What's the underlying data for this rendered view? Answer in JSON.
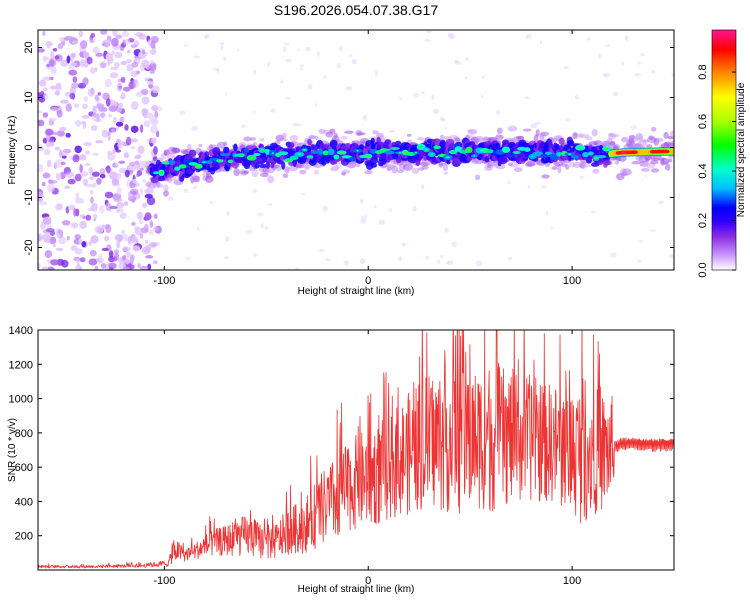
{
  "figure": {
    "title": "S196.2026.054.07.38.G17"
  },
  "chart_data": [
    {
      "type": "heatmap",
      "title": "S196.2026.054.07.38.G17",
      "xlabel": "Height of straight line (km)",
      "ylabel": "Frequency (Hz)",
      "xlim": [
        -162,
        150
      ],
      "ylim": [
        -24.5,
        23.5
      ],
      "xticks": [
        -100,
        0,
        100
      ],
      "xtick_labels": [
        "-100",
        "0",
        "100"
      ],
      "yticks": [
        -20,
        -10,
        0,
        10,
        20
      ],
      "ytick_labels": [
        "-20",
        "-10",
        "0",
        "10",
        "20"
      ],
      "colorbar": {
        "label": "Normalized spectral amplitude",
        "range": [
          0,
          0.97
        ],
        "ticks": [
          0,
          0.2,
          0.4,
          0.6,
          0.8
        ],
        "tick_labels": [
          "0.0",
          "0.2",
          "0.4",
          "0.6",
          "0.8"
        ],
        "colormap": [
          "#ffffff",
          "#cc99ff",
          "#8a2be2",
          "#3300ff",
          "#0000ff",
          "#00bfff",
          "#00ffcc",
          "#00ff00",
          "#aaff00",
          "#ffff00",
          "#ff8800",
          "#ff0000",
          "#ff1493"
        ]
      },
      "noise_region_x": [
        -162,
        -103
      ],
      "track": [
        {
          "x": -105,
          "freq": -5.0,
          "amp": 0.35
        },
        {
          "x": -90,
          "freq": -3.5,
          "amp": 0.45
        },
        {
          "x": -75,
          "freq": -2.5,
          "amp": 0.5
        },
        {
          "x": -60,
          "freq": -2.0,
          "amp": 0.5
        },
        {
          "x": -40,
          "freq": -1.5,
          "amp": 0.5
        },
        {
          "x": -20,
          "freq": -1.2,
          "amp": 0.5
        },
        {
          "x": 0,
          "freq": -1.0,
          "amp": 0.5
        },
        {
          "x": 20,
          "freq": -1.0,
          "amp": 0.5
        },
        {
          "x": 40,
          "freq": -1.0,
          "amp": 0.5
        },
        {
          "x": 60,
          "freq": -0.8,
          "amp": 0.5
        },
        {
          "x": 80,
          "freq": -0.8,
          "amp": 0.5
        },
        {
          "x": 100,
          "freq": -0.8,
          "amp": 0.45
        },
        {
          "x": 115,
          "freq": -1.5,
          "amp": 0.4
        },
        {
          "x": 120,
          "freq": -1.2,
          "amp": 0.75
        },
        {
          "x": 125,
          "freq": -1.0,
          "amp": 0.97
        },
        {
          "x": 135,
          "freq": -0.9,
          "amp": 0.8
        },
        {
          "x": 145,
          "freq": -0.8,
          "amp": 0.95
        },
        {
          "x": 150,
          "freq": -0.8,
          "amp": 0.7
        }
      ]
    },
    {
      "type": "line",
      "xlabel": "Height of straight line (km)",
      "ylabel": "SNR (10 * v/v)",
      "xlim": [
        -162,
        150
      ],
      "ylim": [
        0,
        1400
      ],
      "xticks": [
        -100,
        0,
        100
      ],
      "xtick_labels": [
        "-100",
        "0",
        "100"
      ],
      "yticks": [
        200,
        400,
        600,
        800,
        1000,
        1200,
        1400
      ],
      "ytick_labels": [
        "200",
        "400",
        "600",
        "800",
        "1000",
        "1200",
        "1400"
      ],
      "series": [
        {
          "name": "SNR",
          "color": "#ee3333",
          "envelope_x": [
            -162,
            -140,
            -110,
            -98,
            -95,
            -90,
            -85,
            -80,
            -75,
            -70,
            -65,
            -60,
            -55,
            -50,
            -45,
            -40,
            -35,
            -30,
            -25,
            -20,
            -15,
            -10,
            -5,
            0,
            5,
            10,
            15,
            20,
            25,
            30,
            35,
            40,
            45,
            50,
            55,
            60,
            65,
            70,
            75,
            80,
            85,
            90,
            95,
            100,
            105,
            110,
            115,
            120,
            121,
            125,
            130,
            140,
            150
          ],
          "envelope_mid": [
            20,
            20,
            25,
            40,
            120,
            90,
            110,
            140,
            160,
            170,
            190,
            200,
            180,
            160,
            170,
            220,
            240,
            270,
            330,
            380,
            420,
            480,
            520,
            540,
            560,
            600,
            640,
            680,
            720,
            750,
            760,
            780,
            760,
            760,
            770,
            780,
            770,
            780,
            760,
            770,
            750,
            740,
            720,
            700,
            680,
            700,
            690,
            700,
            720,
            740,
            740,
            735,
            740
          ],
          "envelope_amp": [
            8,
            8,
            10,
            20,
            70,
            40,
            50,
            70,
            80,
            90,
            110,
            120,
            110,
            100,
            110,
            130,
            150,
            170,
            200,
            230,
            250,
            260,
            280,
            290,
            300,
            310,
            330,
            360,
            380,
            400,
            420,
            450,
            430,
            400,
            420,
            450,
            420,
            400,
            380,
            370,
            360,
            350,
            360,
            380,
            420,
            380,
            350,
            320,
            40,
            40,
            45,
            45,
            45
          ]
        }
      ]
    }
  ]
}
